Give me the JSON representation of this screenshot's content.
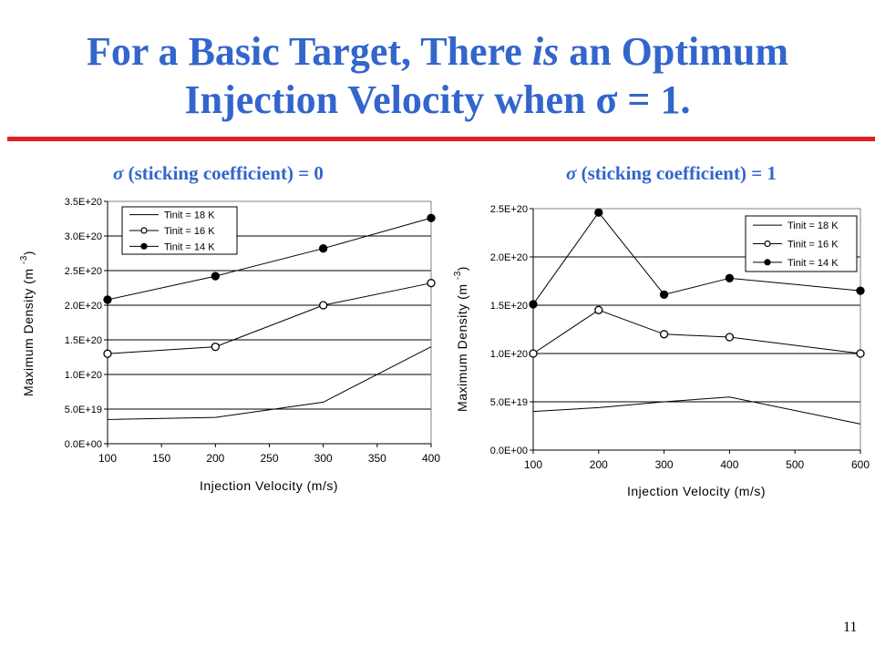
{
  "title": {
    "line1_before": "For a Basic Target, There ",
    "line1_italic": "is",
    "line1_after": " an Optimum",
    "line2": "Injection Velocity when σ = 1."
  },
  "page_number": "11",
  "colors": {
    "title": "#3366cc",
    "rule": "#e02020",
    "line": "#000000"
  },
  "chart_data": [
    {
      "type": "line",
      "heading_symbol": "σ",
      "heading_text": " (sticking coefficient) = 0",
      "xlabel": "Injection Velocity (m/s)",
      "ylabel": "Maximum Density (m",
      "ylabel_exponent": "-3",
      "ylabel_close": ")",
      "x_ticks": [
        100,
        150,
        200,
        250,
        300,
        350,
        400
      ],
      "y_ticks": [
        0,
        5e+19,
        1e+20,
        1.5e+20,
        2e+20,
        2.5e+20,
        3e+20,
        3.5e+20
      ],
      "y_tick_labels": [
        "0.0E+00",
        "5.0E+19",
        "1.0E+20",
        "1.5E+20",
        "2.0E+20",
        "2.5E+20",
        "3.0E+20",
        "3.5E+20"
      ],
      "xlim": [
        100,
        400
      ],
      "ylim": [
        0,
        3.5e+20
      ],
      "grid": "horizontal",
      "legend_position": "top-left",
      "series": [
        {
          "name": "Tinit = 18 K",
          "marker": "none",
          "x": [
            100,
            200,
            300,
            400
          ],
          "y": [
            3.5e+19,
            3.8e+19,
            6e+19,
            1.4e+20
          ]
        },
        {
          "name": "Tinit = 16 K",
          "marker": "open",
          "x": [
            100,
            200,
            300,
            400
          ],
          "y": [
            1.3e+20,
            1.4e+20,
            2e+20,
            2.32e+20
          ]
        },
        {
          "name": "Tinit = 14 K",
          "marker": "filled",
          "x": [
            100,
            200,
            300,
            400
          ],
          "y": [
            2.08e+20,
            2.42e+20,
            2.82e+20,
            3.26e+20
          ]
        }
      ]
    },
    {
      "type": "line",
      "heading_symbol": "σ",
      "heading_text": " (sticking coefficient) = 1",
      "xlabel": "Injection Velocity (m/s)",
      "ylabel": "Maximum Density (m",
      "ylabel_exponent": "-3",
      "ylabel_close": ")",
      "x_ticks": [
        100,
        200,
        300,
        400,
        500,
        600
      ],
      "y_ticks": [
        0,
        5e+19,
        1e+20,
        1.5e+20,
        2e+20,
        2.5e+20
      ],
      "y_tick_labels": [
        "0.0E+00",
        "5.0E+19",
        "1.0E+20",
        "1.5E+20",
        "2.0E+20",
        "2.5E+20"
      ],
      "xlim": [
        100,
        600
      ],
      "ylim": [
        0,
        2.5e+20
      ],
      "grid": "horizontal",
      "legend_position": "top-right",
      "series": [
        {
          "name": "Tinit = 18 K",
          "marker": "none",
          "x": [
            100,
            200,
            300,
            400,
            600
          ],
          "y": [
            4e+19,
            4.4e+19,
            5e+19,
            5.5e+19,
            2.7e+19
          ]
        },
        {
          "name": "Tinit = 16 K",
          "marker": "open",
          "x": [
            100,
            200,
            300,
            400,
            600
          ],
          "y": [
            1e+20,
            1.45e+20,
            1.2e+20,
            1.17e+20,
            1e+20
          ]
        },
        {
          "name": "Tinit = 14 K",
          "marker": "filled",
          "x": [
            100,
            200,
            300,
            400,
            600
          ],
          "y": [
            1.51e+20,
            2.46e+20,
            1.61e+20,
            1.78e+20,
            1.65e+20
          ]
        }
      ]
    }
  ]
}
